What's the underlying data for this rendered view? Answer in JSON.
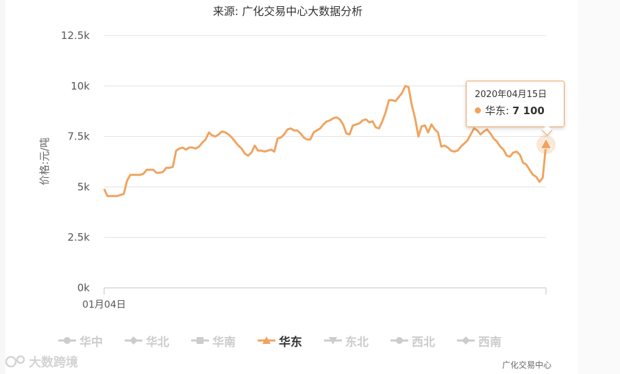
{
  "chart_data": {
    "type": "line",
    "title": "来源: 广化交易中心大数据分析",
    "ylabel": "价格:元/吨",
    "ylim": [
      0,
      12500
    ],
    "yticks": [
      0,
      2500,
      5000,
      7500,
      10000,
      12500
    ],
    "ytick_labels": [
      "0k",
      "2.5k",
      "5k",
      "7.5k",
      "10k",
      "12.5k"
    ],
    "xtick_label": "01月04日",
    "grid": true,
    "series": [
      {
        "name": "华东",
        "color": "#f0a35e",
        "values": [
          4900,
          4550,
          4550,
          4550,
          4550,
          4600,
          4650,
          5300,
          5600,
          5600,
          5600,
          5600,
          5650,
          5850,
          5850,
          5850,
          5700,
          5700,
          5750,
          5950,
          5950,
          6000,
          6800,
          6900,
          6950,
          6850,
          6950,
          6950,
          6900,
          7000,
          7200,
          7350,
          7700,
          7550,
          7500,
          7600,
          7750,
          7700,
          7600,
          7450,
          7250,
          7050,
          6900,
          6650,
          6550,
          6700,
          7050,
          6800,
          6800,
          6750,
          6800,
          6850,
          6750,
          7400,
          7450,
          7600,
          7850,
          7900,
          7800,
          7800,
          7650,
          7450,
          7350,
          7350,
          7700,
          7800,
          7900,
          8100,
          8250,
          8300,
          8400,
          8450,
          8350,
          8100,
          7650,
          7600,
          8050,
          8100,
          8150,
          8300,
          8350,
          8200,
          8250,
          7950,
          7900,
          8250,
          8700,
          9300,
          9300,
          9250,
          9450,
          9650,
          10000,
          9950,
          9050,
          8400,
          7500,
          8000,
          8050,
          7700,
          8100,
          7850,
          7700,
          7000,
          7050,
          6950,
          6800,
          6750,
          6800,
          7000,
          7150,
          7300,
          7600,
          7900,
          7800,
          7600,
          7750,
          7850,
          7650,
          7400,
          7250,
          7000,
          6850,
          6550,
          6500,
          6700,
          6750,
          6600,
          6200,
          6100,
          5850,
          5600,
          5500,
          5250,
          5450,
          7100
        ]
      }
    ],
    "tooltip": {
      "date": "2020年04月15日",
      "series": "华东",
      "value_label": "7 100",
      "value": 7100
    },
    "legend": {
      "position": "bottom",
      "items": [
        {
          "name": "华中",
          "symbol": "circle",
          "active": false
        },
        {
          "name": "华北",
          "symbol": "diamond",
          "active": false
        },
        {
          "name": "华南",
          "symbol": "square",
          "active": false
        },
        {
          "name": "华东",
          "symbol": "triangle",
          "active": true
        },
        {
          "name": "东北",
          "symbol": "triangle-down",
          "active": false
        },
        {
          "name": "西北",
          "symbol": "circle",
          "active": false
        },
        {
          "name": "西南",
          "symbol": "diamond",
          "active": false
        }
      ]
    },
    "credits": "广化交易中心",
    "watermark": "大数跨境"
  },
  "colors": {
    "active": "#f0a35e",
    "inactive": "#cccccc",
    "grid": "#e0e0e0"
  }
}
